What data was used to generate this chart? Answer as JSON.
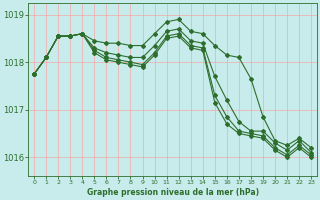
{
  "title": "Graphe pression niveau de la mer (hPa)",
  "bg_color": "#c8ecec",
  "grid_color": "#ff9999",
  "line_color": "#2d6e2d",
  "marker": "D",
  "markersize": 2.0,
  "linewidth": 0.8,
  "ylim": [
    1015.6,
    1019.25
  ],
  "yticks": [
    1016,
    1017,
    1018,
    1019
  ],
  "series": [
    [
      1017.75,
      1018.1,
      1018.55,
      1018.55,
      1018.6,
      1018.45,
      1018.4,
      1018.4,
      1018.35,
      1018.35,
      1018.6,
      1018.85,
      1018.9,
      1018.65,
      1018.6,
      1018.35,
      1018.15,
      1018.1,
      1017.65,
      1016.85,
      1016.35,
      1016.25,
      1016.4,
      1016.2
    ],
    [
      1017.75,
      1018.1,
      1018.55,
      1018.55,
      1018.6,
      1018.3,
      1018.2,
      1018.15,
      1018.1,
      1018.1,
      1018.35,
      1018.65,
      1018.7,
      1018.45,
      1018.4,
      1017.7,
      1017.2,
      1016.75,
      1016.55,
      1016.55,
      1016.3,
      1016.15,
      1016.35,
      1016.1
    ],
    [
      1017.75,
      1018.1,
      1018.55,
      1018.55,
      1018.6,
      1018.25,
      1018.1,
      1018.05,
      1018.0,
      1017.95,
      1018.2,
      1018.55,
      1018.6,
      1018.35,
      1018.3,
      1017.3,
      1016.85,
      1016.55,
      1016.5,
      1016.45,
      1016.2,
      1016.05,
      1016.25,
      1016.05
    ],
    [
      1017.75,
      1018.1,
      1018.55,
      1018.55,
      1018.6,
      1018.2,
      1018.05,
      1018.0,
      1017.95,
      1017.9,
      1018.15,
      1018.5,
      1018.55,
      1018.3,
      1018.25,
      1017.15,
      1016.7,
      1016.5,
      1016.45,
      1016.4,
      1016.15,
      1016.0,
      1016.2,
      1016.0
    ]
  ],
  "x": [
    0,
    1,
    2,
    3,
    4,
    5,
    6,
    7,
    8,
    9,
    10,
    11,
    12,
    13,
    14,
    15,
    16,
    17,
    18,
    19,
    20,
    21,
    22,
    23
  ],
  "figsize": [
    3.2,
    2.0
  ],
  "dpi": 100
}
